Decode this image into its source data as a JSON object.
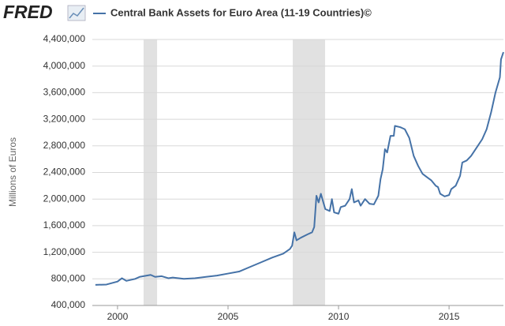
{
  "logo": "FRED",
  "chart_data": {
    "type": "line",
    "series": [
      {
        "name": "Central Bank Assets for Euro Area (11-19 Countries)©",
        "color": "#4572a7",
        "x": [
          1999.0,
          1999.5,
          2000.0,
          2000.2,
          2000.4,
          2000.8,
          2001.0,
          2001.5,
          2001.7,
          2002.0,
          2002.3,
          2002.5,
          2003.0,
          2003.5,
          2004.0,
          2004.5,
          2005.0,
          2005.5,
          2006.0,
          2006.5,
          2007.0,
          2007.5,
          2007.8,
          2007.9,
          2008.0,
          2008.1,
          2008.3,
          2008.6,
          2008.8,
          2008.9,
          2009.0,
          2009.1,
          2009.2,
          2009.4,
          2009.6,
          2009.7,
          2009.8,
          2010.0,
          2010.1,
          2010.3,
          2010.5,
          2010.6,
          2010.7,
          2010.9,
          2011.0,
          2011.2,
          2011.4,
          2011.6,
          2011.8,
          2011.9,
          2012.0,
          2012.1,
          2012.2,
          2012.35,
          2012.5,
          2012.55,
          2012.8,
          2013.0,
          2013.2,
          2013.4,
          2013.6,
          2013.8,
          2014.0,
          2014.2,
          2014.4,
          2014.5,
          2014.6,
          2014.8,
          2015.0,
          2015.1,
          2015.3,
          2015.5,
          2015.6,
          2015.8,
          2016.0,
          2016.3,
          2016.5,
          2016.7,
          2016.9,
          2017.1,
          2017.3,
          2017.35,
          2017.46
        ],
        "values": [
          710000,
          715000,
          760000,
          810000,
          770000,
          800000,
          830000,
          860000,
          830000,
          840000,
          810000,
          820000,
          800000,
          810000,
          830000,
          850000,
          880000,
          910000,
          980000,
          1050000,
          1120000,
          1180000,
          1250000,
          1300000,
          1500000,
          1380000,
          1420000,
          1470000,
          1500000,
          1580000,
          2050000,
          1950000,
          2080000,
          1850000,
          1820000,
          2000000,
          1800000,
          1780000,
          1880000,
          1900000,
          2000000,
          2150000,
          1950000,
          1980000,
          1900000,
          2000000,
          1930000,
          1920000,
          2050000,
          2300000,
          2450000,
          2750000,
          2700000,
          2950000,
          2950000,
          3100000,
          3080000,
          3050000,
          2920000,
          2650000,
          2500000,
          2380000,
          2330000,
          2280000,
          2200000,
          2180000,
          2080000,
          2040000,
          2060000,
          2150000,
          2200000,
          2350000,
          2550000,
          2580000,
          2650000,
          2800000,
          2900000,
          3050000,
          3300000,
          3600000,
          3830000,
          4100000,
          4210000
        ]
      }
    ],
    "ylabel": "Millions of Euros",
    "xlim": [
      1998.86,
      2017.46
    ],
    "xticks": [
      2000,
      2005,
      2010,
      2015
    ],
    "ylim": [
      400000,
      4400000
    ],
    "yticks": [
      {
        "value": 400000,
        "label": "400,000"
      },
      {
        "value": 800000,
        "label": "800,000"
      },
      {
        "value": 1200000,
        "label": "1,200,000"
      },
      {
        "value": 1600000,
        "label": "1,600,000"
      },
      {
        "value": 2000000,
        "label": "2,000,000"
      },
      {
        "value": 2400000,
        "label": "2,400,000"
      },
      {
        "value": 2800000,
        "label": "2,800,000"
      },
      {
        "value": 3200000,
        "label": "3,200,000"
      },
      {
        "value": 3600000,
        "label": "3,600,000"
      },
      {
        "value": 4000000,
        "label": "4,000,000"
      },
      {
        "value": 4400000,
        "label": "4,400,000"
      }
    ],
    "recessions": [
      [
        2001.18,
        2001.79
      ],
      [
        2007.93,
        2009.39
      ]
    ],
    "grid": true
  }
}
